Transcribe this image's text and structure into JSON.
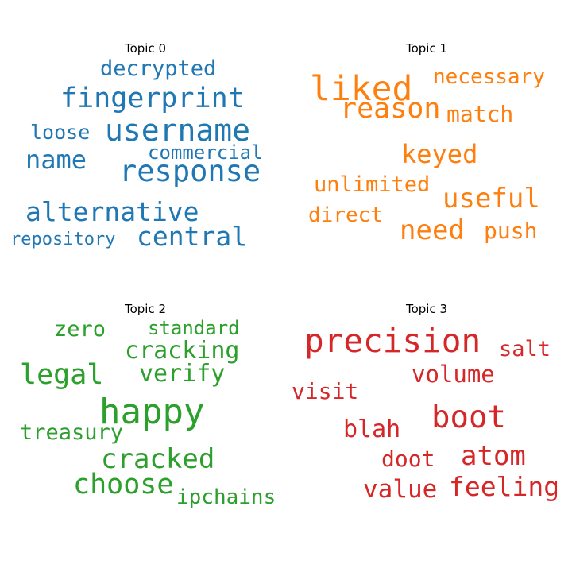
{
  "chart_data": [
    {
      "type": "wordcloud",
      "title": "Topic 0",
      "color": "#1f77b4",
      "words": [
        "decrypted",
        "fingerprint",
        "loose",
        "username",
        "commercial",
        "name",
        "response",
        "alternative",
        "repository",
        "central"
      ]
    },
    {
      "type": "wordcloud",
      "title": "Topic 1",
      "color": "#ff7f0e",
      "words": [
        "necessary",
        "liked",
        "reason",
        "match",
        "keyed",
        "unlimited",
        "useful",
        "direct",
        "need",
        "push"
      ]
    },
    {
      "type": "wordcloud",
      "title": "Topic 2",
      "color": "#2ca02c",
      "words": [
        "zero",
        "standard",
        "cracking",
        "legal",
        "verify",
        "happy",
        "treasury",
        "cracked",
        "choose",
        "ipchains"
      ]
    },
    {
      "type": "wordcloud",
      "title": "Topic 3",
      "color": "#d62728",
      "words": [
        "precision",
        "salt",
        "volume",
        "visit",
        "boot",
        "blah",
        "atom",
        "doot",
        "value",
        "feeling"
      ]
    }
  ]
}
